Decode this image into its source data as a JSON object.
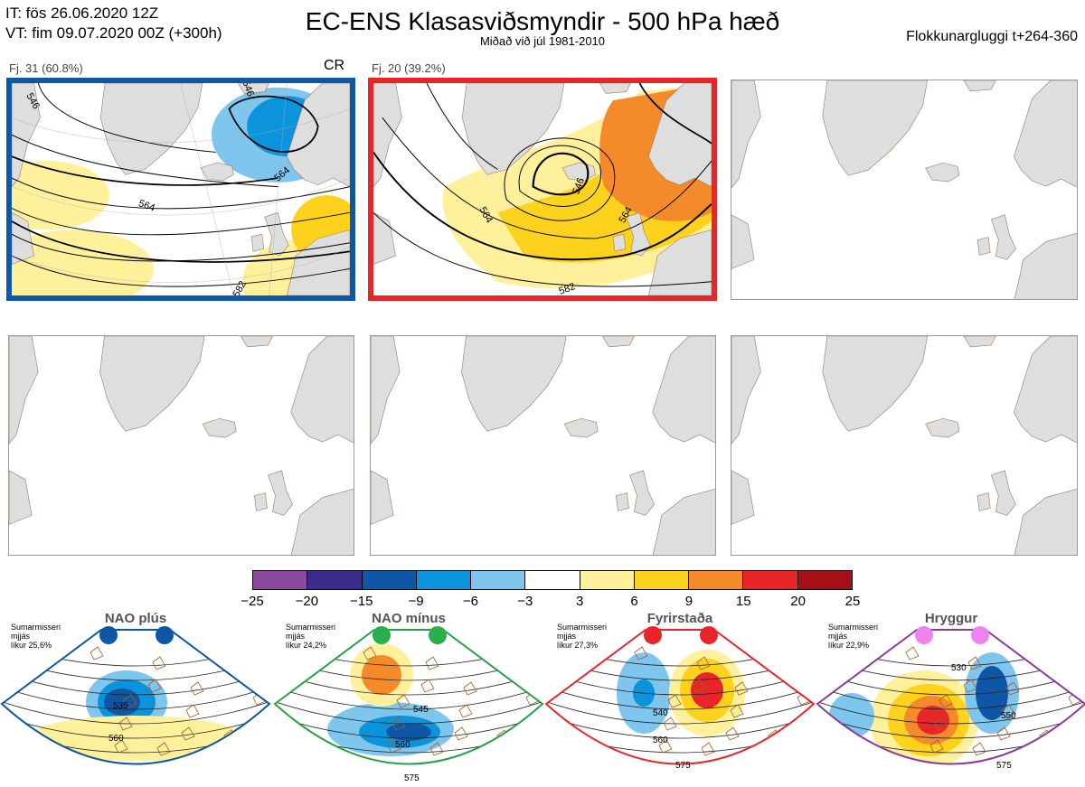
{
  "header": {
    "it_line": "IT: fös 26.06.2020 12Z",
    "vt_line": "VT: fim 09.07.2020 00Z  (+300h)",
    "title": "EC-ENS Klasasviðsmyndir - 500 hPa hæð",
    "subtitle": "Miðað við júl 1981-2010",
    "window": "Flokkunargluggi t+264-360"
  },
  "clusters": [
    {
      "label": "Fj. 31 (60.8%)",
      "tag": "CR",
      "frame_color": "#0d57a6",
      "contour_labels": [
        "546",
        "564",
        "564",
        "582",
        "546"
      ]
    },
    {
      "label": "Fj. 20 (39.2%)",
      "tag": "",
      "frame_color": "#e8262a",
      "contour_labels": [
        "546",
        "564",
        "564",
        "582"
      ]
    }
  ],
  "colorbar": {
    "ticks": [
      "−25",
      "−20",
      "−15",
      "−9",
      "−6",
      "−3",
      "3",
      "6",
      "9",
      "15",
      "20",
      "25"
    ],
    "colors": [
      "#8c4a9e",
      "#3d2b8c",
      "#0d57a6",
      "#0b93dc",
      "#7fc6ee",
      "#ffffff",
      "#fff19b",
      "#fcd21c",
      "#f48a2a",
      "#e8262a",
      "#a50f15"
    ]
  },
  "regimes": [
    {
      "name": "NAO plús",
      "season": "Sumarmisseri",
      "smoothing": "mjjás",
      "prob": "líkur 25,6%",
      "dot_color": "#0d57a6",
      "frame_color": "#0d57a6",
      "contours": [
        "535",
        "560"
      ]
    },
    {
      "name": "NAO mínus",
      "season": "Sumarmisseri",
      "smoothing": "mjjás",
      "prob": "líkur 24,2%",
      "dot_color": "#28b04a",
      "frame_color": "#28a046",
      "contours": [
        "545",
        "560",
        "575"
      ]
    },
    {
      "name": "Fyrirstaða",
      "season": "Sumarmisseri",
      "smoothing": "mjjás",
      "prob": "líkur 27,3%",
      "dot_color": "#e8262a",
      "frame_color": "#e8262a",
      "contours": [
        "540",
        "560",
        "575"
      ]
    },
    {
      "name": "Hryggur",
      "season": "Sumarmisseri",
      "smoothing": "mjjás",
      "prob": "líkur 22,9%",
      "dot_color": "#ee82ee",
      "frame_color": "#8b3b9c",
      "contours": [
        "530",
        "550",
        "575"
      ]
    }
  ]
}
